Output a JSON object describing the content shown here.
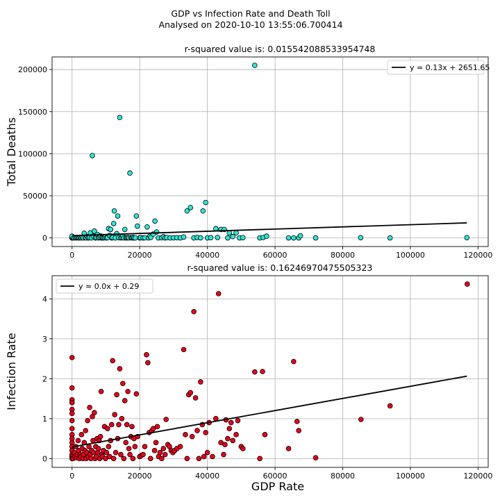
{
  "figure": {
    "title": "GDP vs Infection Rate and Death Toll",
    "subtitle": "Analysed on 2020-10-10 13:55:06.700414"
  },
  "chart_data": [
    {
      "type": "scatter",
      "title": "r-squared value is: 0.015542088533954748",
      "xlabel": "",
      "ylabel": "Total Deaths",
      "xlim": [
        -5900,
        123000
      ],
      "ylim": [
        -10300,
        215000
      ],
      "xticks": [
        "0",
        "20000",
        "40000",
        "60000",
        "80000",
        "100000",
        "120000"
      ],
      "xtick_values": [
        0,
        20000,
        40000,
        60000,
        80000,
        100000,
        120000
      ],
      "yticks": [
        "0",
        "50000",
        "100000",
        "150000",
        "200000"
      ],
      "ytick_values": [
        0,
        50000,
        100000,
        150000,
        200000
      ],
      "grid": true,
      "legend": {
        "position": "upper right",
        "label": "y = 0.13x + 2651.65"
      },
      "marker_color": "#2ee6d6",
      "line_color": "#000000",
      "regression": {
        "slope": 0.13,
        "intercept": 2651.65,
        "x_range": [
          0,
          116700
        ]
      },
      "points": [
        [
          0,
          0
        ],
        [
          0,
          80
        ],
        [
          0,
          300
        ],
        [
          0,
          600
        ],
        [
          0,
          1200
        ],
        [
          0,
          2000
        ],
        [
          500,
          0
        ],
        [
          900,
          200
        ],
        [
          1200,
          0
        ],
        [
          1500,
          500
        ],
        [
          1800,
          100
        ],
        [
          2100,
          0
        ],
        [
          2400,
          300
        ],
        [
          2700,
          0
        ],
        [
          3000,
          800
        ],
        [
          3300,
          0
        ],
        [
          3600,
          5500
        ],
        [
          3900,
          200
        ],
        [
          4200,
          0
        ],
        [
          4500,
          1500
        ],
        [
          4800,
          0
        ],
        [
          5100,
          400
        ],
        [
          5400,
          6000
        ],
        [
          5700,
          0
        ],
        [
          6000,
          97800
        ],
        [
          6300,
          2000
        ],
        [
          6600,
          8000
        ],
        [
          6900,
          0
        ],
        [
          7200,
          300
        ],
        [
          7500,
          4000
        ],
        [
          7800,
          0
        ],
        [
          8100,
          600
        ],
        [
          8400,
          2500
        ],
        [
          8700,
          0
        ],
        [
          9000,
          100
        ],
        [
          9300,
          0
        ],
        [
          9600,
          300
        ],
        [
          9900,
          1500
        ],
        [
          10200,
          0
        ],
        [
          10500,
          200
        ],
        [
          10800,
          11000
        ],
        [
          11100,
          3000
        ],
        [
          11400,
          10000
        ],
        [
          11700,
          0
        ],
        [
          12000,
          400
        ],
        [
          12300,
          17000
        ],
        [
          12500,
          32000
        ],
        [
          12800,
          0
        ],
        [
          13200,
          5000
        ],
        [
          13500,
          26000
        ],
        [
          13800,
          300
        ],
        [
          14100,
          143000
        ],
        [
          14400,
          0
        ],
        [
          14700,
          700
        ],
        [
          15000,
          2000
        ],
        [
          15300,
          0
        ],
        [
          15600,
          10000
        ],
        [
          15900,
          100
        ],
        [
          16200,
          0
        ],
        [
          16500,
          400
        ],
        [
          16800,
          0
        ],
        [
          17100,
          77000
        ],
        [
          17400,
          200
        ],
        [
          17700,
          0
        ],
        [
          18000,
          500
        ],
        [
          18300,
          0
        ],
        [
          18700,
          0
        ],
        [
          19000,
          26000
        ],
        [
          19300,
          14000
        ],
        [
          20000,
          0
        ],
        [
          20300,
          300
        ],
        [
          21000,
          0
        ],
        [
          21500,
          100
        ],
        [
          22200,
          13000
        ],
        [
          22600,
          0
        ],
        [
          23000,
          2000
        ],
        [
          23300,
          600
        ],
        [
          24000,
          4500
        ],
        [
          24500,
          20000
        ],
        [
          25000,
          7000
        ],
        [
          25500,
          0
        ],
        [
          26500,
          200
        ],
        [
          27000,
          1500
        ],
        [
          27500,
          0
        ],
        [
          28000,
          400
        ],
        [
          29000,
          0
        ],
        [
          30000,
          100
        ],
        [
          31000,
          300
        ],
        [
          32000,
          0
        ],
        [
          33000,
          1000
        ],
        [
          34000,
          32000
        ],
        [
          35000,
          36000
        ],
        [
          36000,
          0
        ],
        [
          37000,
          500
        ],
        [
          38000,
          100
        ],
        [
          38700,
          32000
        ],
        [
          39500,
          42000
        ],
        [
          40000,
          0
        ],
        [
          41000,
          300
        ],
        [
          42500,
          11000
        ],
        [
          43000,
          500
        ],
        [
          44000,
          10000
        ],
        [
          45000,
          10000
        ],
        [
          46000,
          0
        ],
        [
          46500,
          6000
        ],
        [
          47500,
          1500
        ],
        [
          48500,
          6000
        ],
        [
          49500,
          0
        ],
        [
          50500,
          300
        ],
        [
          54000,
          205000
        ],
        [
          55500,
          0
        ],
        [
          56500,
          500
        ],
        [
          57500,
          2000
        ],
        [
          64000,
          0
        ],
        [
          65500,
          0
        ],
        [
          67000,
          0
        ],
        [
          67500,
          2500
        ],
        [
          72000,
          0
        ],
        [
          85300,
          300
        ],
        [
          94000,
          0
        ],
        [
          116700,
          300
        ]
      ]
    },
    {
      "type": "scatter",
      "title": "r-squared value is: 0.16246970475505323",
      "xlabel": "GDP Rate",
      "ylabel": "Infection Rate",
      "xlim": [
        -5900,
        123000
      ],
      "ylim": [
        -0.22,
        4.58
      ],
      "xticks": [
        "0",
        "20000",
        "40000",
        "60000",
        "80000",
        "100000",
        "120000"
      ],
      "xtick_values": [
        0,
        20000,
        40000,
        60000,
        80000,
        100000,
        120000
      ],
      "yticks": [
        "0",
        "1",
        "2",
        "3",
        "4"
      ],
      "ytick_values": [
        0,
        1,
        2,
        3,
        4
      ],
      "grid": true,
      "legend": {
        "position": "upper left",
        "label": "y = 0.0x + 0.29"
      },
      "marker_color": "#e8001c",
      "line_color": "#000000",
      "regression": {
        "slope": 1.52e-05,
        "intercept": 0.29,
        "x_range": [
          0,
          116700
        ]
      },
      "points": [
        [
          0,
          2.53
        ],
        [
          0,
          1.77
        ],
        [
          0,
          1.47
        ],
        [
          0,
          1.4
        ],
        [
          0,
          1.23
        ],
        [
          0,
          1.13
        ],
        [
          0,
          0.95
        ],
        [
          0,
          0.6
        ],
        [
          0,
          0.5
        ],
        [
          0,
          0.4
        ],
        [
          0,
          0.3
        ],
        [
          0,
          0.2
        ],
        [
          0,
          0.1
        ],
        [
          0,
          0.05
        ],
        [
          0,
          0.0
        ],
        [
          0,
          0.75
        ],
        [
          300,
          0.0
        ],
        [
          700,
          0.15
        ],
        [
          900,
          0.05
        ],
        [
          1100,
          0.3
        ],
        [
          1400,
          0.02
        ],
        [
          1600,
          0.1
        ],
        [
          1800,
          0.45
        ],
        [
          2000,
          0.2
        ],
        [
          2200,
          0.0
        ],
        [
          2400,
          0.1
        ],
        [
          2600,
          0.05
        ],
        [
          2800,
          0.6
        ],
        [
          3000,
          0.25
        ],
        [
          3200,
          0.0
        ],
        [
          3400,
          0.1
        ],
        [
          3600,
          0.4
        ],
        [
          3800,
          0.2
        ],
        [
          4000,
          0.7
        ],
        [
          4200,
          0.0
        ],
        [
          4400,
          0.15
        ],
        [
          4600,
          0.95
        ],
        [
          4800,
          0.05
        ],
        [
          5000,
          0.3
        ],
        [
          5200,
          1.28
        ],
        [
          5400,
          0.1
        ],
        [
          5600,
          0.0
        ],
        [
          5800,
          0.2
        ],
        [
          6000,
          1.05
        ],
        [
          6200,
          0.45
        ],
        [
          6400,
          0.15
        ],
        [
          6600,
          1.15
        ],
        [
          6800,
          0.0
        ],
        [
          7000,
          0.3
        ],
        [
          7200,
          0.05
        ],
        [
          7400,
          0.5
        ],
        [
          7600,
          0.15
        ],
        [
          7800,
          0.25
        ],
        [
          8000,
          0.45
        ],
        [
          8200,
          0.0
        ],
        [
          8400,
          0.55
        ],
        [
          8600,
          1.68
        ],
        [
          8800,
          0.1
        ],
        [
          9000,
          0.05
        ],
        [
          9300,
          0.2
        ],
        [
          9600,
          0.8
        ],
        [
          9900,
          0.0
        ],
        [
          10200,
          0.15
        ],
        [
          10500,
          0.75
        ],
        [
          10800,
          0.3
        ],
        [
          11100,
          0.05
        ],
        [
          11400,
          0.45
        ],
        [
          11700,
          0.85
        ],
        [
          12000,
          2.45
        ],
        [
          12300,
          0.0
        ],
        [
          12600,
          1.1
        ],
        [
          12900,
          0.15
        ],
        [
          13200,
          1.6
        ],
        [
          13500,
          0.5
        ],
        [
          13800,
          0.85
        ],
        [
          14100,
          2.25
        ],
        [
          14400,
          0.1
        ],
        [
          14700,
          1.0
        ],
        [
          15000,
          1.88
        ],
        [
          15300,
          0.0
        ],
        [
          15600,
          1.45
        ],
        [
          15900,
          0.4
        ],
        [
          16200,
          0.85
        ],
        [
          16500,
          1.68
        ],
        [
          16800,
          0.25
        ],
        [
          17100,
          0.1
        ],
        [
          17400,
          0.55
        ],
        [
          17700,
          0.8
        ],
        [
          18000,
          0.0
        ],
        [
          18300,
          0.5
        ],
        [
          18600,
          0.3
        ],
        [
          19000,
          1.62
        ],
        [
          19400,
          0.55
        ],
        [
          20000,
          0.05
        ],
        [
          20500,
          0.08
        ],
        [
          21000,
          0.1
        ],
        [
          21500,
          0.3
        ],
        [
          22000,
          2.6
        ],
        [
          22400,
          2.4
        ],
        [
          22800,
          0.65
        ],
        [
          23200,
          0.0
        ],
        [
          23600,
          0.7
        ],
        [
          24000,
          0.75
        ],
        [
          24400,
          0.2
        ],
        [
          24800,
          0.4
        ],
        [
          25200,
          0.8
        ],
        [
          25600,
          0.05
        ],
        [
          26000,
          0.15
        ],
        [
          26500,
          0.0
        ],
        [
          27000,
          0.25
        ],
        [
          27500,
          0.1
        ],
        [
          27800,
          0.98
        ],
        [
          28300,
          0.35
        ],
        [
          28800,
          0.3
        ],
        [
          29300,
          0.2
        ],
        [
          29800,
          0.15
        ],
        [
          30300,
          0.2
        ],
        [
          31000,
          0.25
        ],
        [
          32000,
          0.3
        ],
        [
          33000,
          2.73
        ],
        [
          33500,
          0.6
        ],
        [
          34000,
          0.0
        ],
        [
          34500,
          1.6
        ],
        [
          35000,
          1.65
        ],
        [
          35500,
          0.55
        ],
        [
          36000,
          3.68
        ],
        [
          36500,
          1.52
        ],
        [
          37000,
          0.7
        ],
        [
          37500,
          0.0
        ],
        [
          38000,
          1.92
        ],
        [
          38500,
          0.85
        ],
        [
          39000,
          0.05
        ],
        [
          39500,
          0.65
        ],
        [
          40000,
          0.15
        ],
        [
          40500,
          0.9
        ],
        [
          41500,
          0.05
        ],
        [
          42500,
          1.0
        ],
        [
          43300,
          4.13
        ],
        [
          44000,
          0.4
        ],
        [
          44800,
          0.1
        ],
        [
          45200,
          0.35
        ],
        [
          45500,
          0.97
        ],
        [
          46000,
          0.5
        ],
        [
          46500,
          0.75
        ],
        [
          47000,
          0.9
        ],
        [
          47500,
          0.45
        ],
        [
          48500,
          0.6
        ],
        [
          49000,
          0.95
        ],
        [
          50000,
          0.3
        ],
        [
          50500,
          0.25
        ],
        [
          54000,
          2.17
        ],
        [
          55500,
          0.0
        ],
        [
          56300,
          2.18
        ],
        [
          57000,
          0.6
        ],
        [
          64000,
          0.25
        ],
        [
          65500,
          2.43
        ],
        [
          66500,
          0.93
        ],
        [
          67000,
          0.7
        ],
        [
          72000,
          0.02
        ],
        [
          85400,
          0.98
        ],
        [
          94000,
          1.32
        ],
        [
          116800,
          4.37
        ]
      ]
    }
  ]
}
